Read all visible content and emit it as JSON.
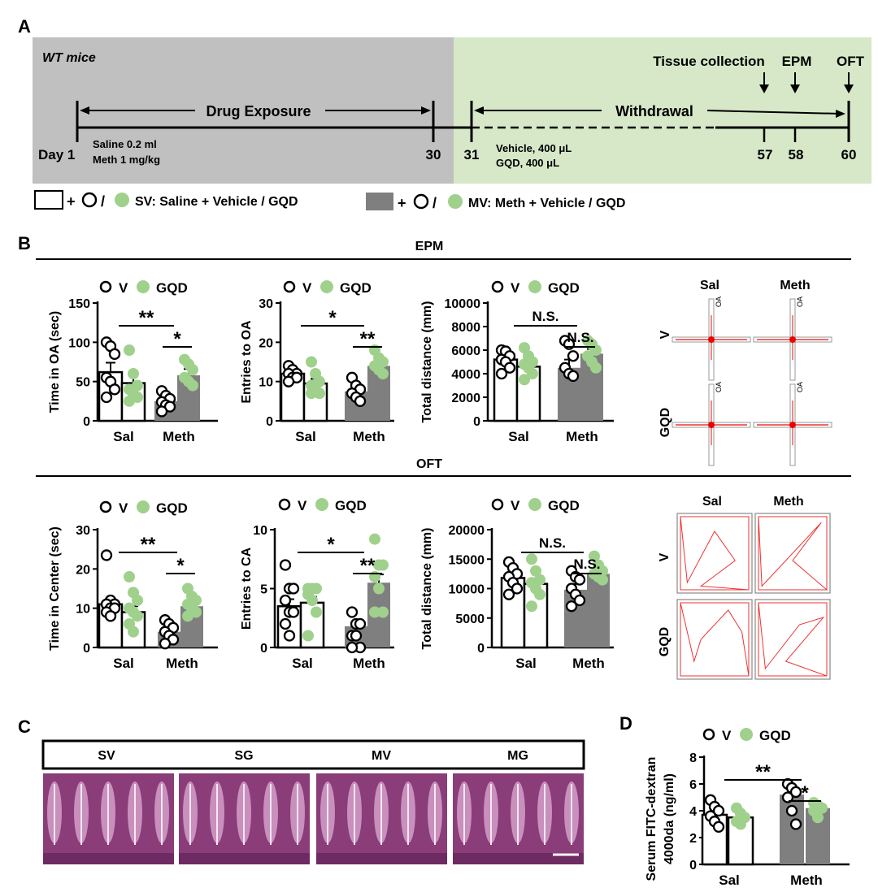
{
  "panels": {
    "a": "A",
    "b": "B",
    "c": "C",
    "d": "D"
  },
  "colors": {
    "gray_bg": "#c0c0c0",
    "green_bg": "#d6e8c8",
    "green_dot": "#9fd18c",
    "bar_gray": "#7f7f7f"
  },
  "timeline": {
    "mouse_label": "WT mice",
    "drug_exposure": "Drug Exposure",
    "withdrawal": "Withdrawal",
    "tissue": "Tissue collection",
    "epm": "EPM",
    "oft": "OFT",
    "day_label": "Day 1",
    "day30": "30",
    "day31": "31",
    "day57": "57",
    "day58": "58",
    "day60": "60",
    "saline_dose": "Saline 0.2 ml",
    "meth_dose": "Meth   1 mg/kg",
    "vehicle_dose": "Vehicle, 400 μL",
    "gqd_dose": "GQD,     400 μL"
  },
  "legend_a": {
    "sv_text": "SV: Saline + Vehicle / GQD",
    "mv_text": "MV: Meth + Vehicle / GQD",
    "plus": "+",
    "slash": "/"
  },
  "section_titles": {
    "epm": "EPM",
    "oft": "OFT"
  },
  "legend_vg": {
    "v": "V",
    "gqd": "GQD"
  },
  "groups": [
    "Sal",
    "Meth"
  ],
  "chart_data": [
    {
      "type": "bar",
      "id": "epm_time",
      "ylabel": "Time in OA (sec)",
      "ylim": [
        0,
        150
      ],
      "yticks": [
        "0",
        "50",
        "100",
        "150"
      ],
      "categories": [
        "Sal",
        "Meth"
      ],
      "series": [
        {
          "name": "V",
          "values": [
            62,
            25
          ],
          "sem": [
            12,
            5
          ],
          "points": [
            [
              100,
              95,
              85,
              55,
              50,
              40,
              30
            ],
            [
              38,
              32,
              28,
              24,
              20,
              18,
              12
            ]
          ]
        },
        {
          "name": "GQD",
          "values": [
            48,
            58
          ],
          "sem": [
            10,
            8
          ],
          "points": [
            [
              90,
              60,
              45,
              40,
              35,
              30,
              25
            ],
            [
              78,
              72,
              65,
              55,
              50,
              45
            ]
          ]
        }
      ],
      "sig": [
        {
          "text": "**"
        },
        {
          "text": "*"
        }
      ]
    },
    {
      "type": "bar",
      "id": "epm_entries",
      "ylabel": "Entries to OA",
      "ylim": [
        0,
        30
      ],
      "yticks": [
        "0",
        "10",
        "20",
        "30"
      ],
      "categories": [
        "Sal",
        "Meth"
      ],
      "series": [
        {
          "name": "V",
          "values": [
            12,
            7.5
          ],
          "sem": [
            1,
            1.2
          ],
          "points": [
            [
              14,
              13,
              12,
              12,
              11,
              11,
              10
            ],
            [
              11,
              9,
              8,
              7,
              6,
              5
            ]
          ]
        },
        {
          "name": "GQD",
          "values": [
            9.5,
            14
          ],
          "sem": [
            1.2,
            1
          ],
          "points": [
            [
              15,
              12,
              10,
              9,
              8,
              7,
              7
            ],
            [
              18,
              16,
              15,
              14,
              13,
              12
            ]
          ]
        }
      ],
      "sig": [
        {
          "text": "*"
        },
        {
          "text": "**"
        }
      ]
    },
    {
      "type": "bar",
      "id": "epm_distance",
      "ylabel": "Total distance (mm)",
      "ylim": [
        0,
        10000
      ],
      "yticks": [
        "0",
        "2000",
        "4000",
        "6000",
        "8000",
        "10000"
      ],
      "categories": [
        "Sal",
        "Meth"
      ],
      "series": [
        {
          "name": "V",
          "values": [
            5200,
            4500
          ],
          "sem": [
            400,
            700
          ],
          "points": [
            [
              6000,
              5900,
              5500,
              5200,
              5000,
              4500,
              4000
            ],
            [
              6800,
              6500,
              5500,
              4500,
              4000,
              3800
            ]
          ]
        },
        {
          "name": "GQD",
          "values": [
            4600,
            5700
          ],
          "sem": [
            500,
            400
          ],
          "points": [
            [
              6200,
              5500,
              5000,
              4800,
              4500,
              4000,
              3500
            ],
            [
              6800,
              6500,
              6000,
              5500,
              5000,
              4500
            ]
          ]
        }
      ],
      "sig": [
        {
          "text": "N.S."
        },
        {
          "text": "N.S."
        }
      ]
    },
    {
      "type": "bar",
      "id": "oft_time",
      "ylabel": "Time in Center (sec)",
      "ylim": [
        0,
        30
      ],
      "yticks": [
        "0",
        "10",
        "20",
        "30"
      ],
      "categories": [
        "Sal",
        "Meth"
      ],
      "series": [
        {
          "name": "V",
          "values": [
            11,
            4
          ],
          "sem": [
            1.5,
            1
          ],
          "points": [
            [
              23.5,
              12,
              11,
              11,
              10,
              10,
              9,
              8
            ],
            [
              7,
              6,
              5,
              4,
              3,
              2,
              1
            ]
          ]
        },
        {
          "name": "GQD",
          "values": [
            9,
            10.5
          ],
          "sem": [
            1.5,
            1.2
          ],
          "points": [
            [
              18,
              14,
              12,
              10,
              9,
              8,
              6,
              4
            ],
            [
              15,
              13,
              12,
              11,
              10,
              9,
              8
            ]
          ]
        }
      ],
      "sig": [
        {
          "text": "**"
        },
        {
          "text": "*"
        }
      ]
    },
    {
      "type": "bar",
      "id": "oft_entries",
      "ylabel": "Entries to CA",
      "ylim": [
        0,
        10
      ],
      "yticks": [
        "0",
        "5",
        "10"
      ],
      "categories": [
        "Sal",
        "Meth"
      ],
      "series": [
        {
          "name": "V",
          "values": [
            3.5,
            1.8
          ],
          "sem": [
            0.6,
            0.4
          ],
          "points": [
            [
              7,
              5,
              5,
              4,
              3,
              3,
              2,
              1
            ],
            [
              3,
              2,
              2,
              1,
              1,
              0,
              0
            ]
          ]
        },
        {
          "name": "GQD",
          "values": [
            3.8,
            5.5
          ],
          "sem": [
            0.5,
            0.7
          ],
          "points": [
            [
              5,
              5,
              5,
              4.5,
              4,
              3,
              1
            ],
            [
              9.2,
              7,
              7,
              6,
              5,
              3,
              3
            ]
          ]
        }
      ],
      "sig": [
        {
          "text": "*"
        },
        {
          "text": "**"
        }
      ]
    },
    {
      "type": "bar",
      "id": "oft_distance",
      "ylabel": "Total distance (mm)",
      "ylim": [
        0,
        20000
      ],
      "yticks": [
        "0",
        "5000",
        "10000",
        "15000",
        "20000"
      ],
      "categories": [
        "Sal",
        "Meth"
      ],
      "series": [
        {
          "name": "V",
          "values": [
            11800,
            9800
          ],
          "sem": [
            700,
            1000
          ],
          "points": [
            [
              14500,
              13500,
              12500,
              12000,
              11000,
              10000,
              9000
            ],
            [
              13000,
              12000,
              11500,
              10000,
              9000,
              8000,
              7000
            ]
          ]
        },
        {
          "name": "GQD",
          "values": [
            10800,
            12500
          ],
          "sem": [
            900,
            700
          ],
          "points": [
            [
              15000,
              13000,
              11500,
              11000,
              10000,
              9000,
              7000
            ],
            [
              15500,
              14000,
              13000,
              12500,
              12000,
              11500
            ]
          ]
        }
      ],
      "sig": [
        {
          "text": "N.S."
        },
        {
          "text": "N.S."
        }
      ]
    },
    {
      "type": "bar",
      "id": "serum",
      "ylabel": "Serum FITC-dextran",
      "ylabel2": "4000da  (ng/ml)",
      "ylim": [
        0,
        8
      ],
      "yticks": [
        "0",
        "2",
        "4",
        "6",
        "8"
      ],
      "categories": [
        "Sal",
        "Meth"
      ],
      "series": [
        {
          "name": "V",
          "values": [
            3.7,
            5.2
          ],
          "sem": [
            0.3,
            0.4
          ],
          "points": [
            [
              4.8,
              4.3,
              4,
              3.6,
              3.2,
              2.8
            ],
            [
              6,
              5.7,
              5.4,
              5,
              4,
              3
            ]
          ]
        },
        {
          "name": "GQD",
          "values": [
            3.5,
            4.2
          ],
          "sem": [
            0.3,
            0.3
          ],
          "points": [
            [
              4.2,
              3.8,
              3.5,
              3.2,
              3
            ],
            [
              4.6,
              4.4,
              4.2,
              4,
              3.5
            ]
          ]
        }
      ],
      "sig": [
        {
          "text": "**"
        },
        {
          "text": "*"
        }
      ]
    }
  ],
  "tracks": {
    "sal": "Sal",
    "meth": "Meth",
    "v": "V",
    "gqd": "GQD",
    "oa": "OA"
  },
  "histology": [
    "SV",
    "SG",
    "MV",
    "MG"
  ]
}
